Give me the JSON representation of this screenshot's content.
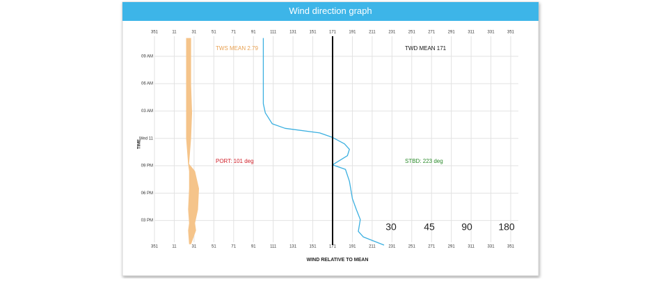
{
  "chart_data": {
    "type": "line",
    "title": "Wind direction graph",
    "x_label": "WIND RELATIVE TO MEAN",
    "y_label": "TIME",
    "xlim": [
      -9,
      351
    ],
    "xticks": [
      {
        "value": -9,
        "label": "351"
      },
      11,
      31,
      51,
      71,
      91,
      111,
      131,
      151,
      171,
      191,
      211,
      231,
      251,
      271,
      291,
      311,
      331,
      351
    ],
    "ylim": [
      -2.7,
      20.2
    ],
    "yticks": [
      {
        "value": 18,
        "label": "09 AM"
      },
      {
        "value": 15,
        "label": "06 AM"
      },
      {
        "value": 12,
        "label": "03 AM"
      },
      {
        "value": 9,
        "label": "Wed 11"
      },
      {
        "value": 6,
        "label": "09 PM"
      },
      {
        "value": 3,
        "label": "06 PM"
      },
      {
        "value": 0,
        "label": "03 PM"
      }
    ],
    "grid": true,
    "mean_direction": 171,
    "series": [
      {
        "color": "#f5c48a",
        "x_base": [
          23,
          23,
          23,
          23,
          23,
          25,
          26,
          26,
          25,
          26,
          25,
          26
        ],
        "x": [
          28,
          28,
          28,
          29,
          28,
          26,
          32,
          36,
          35,
          32,
          33,
          28
        ],
        "y": [
          20.0,
          17.9,
          14.9,
          11.8,
          9.0,
          6.2,
          5.4,
          3.5,
          1.2,
          -0.3,
          -1.1,
          -2.6
        ]
      },
      {
        "color": "#3aafe0",
        "x": [
          101,
          101,
          103,
          110,
          123,
          158,
          171,
          183,
          188,
          186,
          171,
          184,
          188,
          191,
          195,
          199,
          197,
          202,
          223
        ],
        "y": [
          20.0,
          12.8,
          11.8,
          10.6,
          10.1,
          9.6,
          9.1,
          8.4,
          7.8,
          7.1,
          6.1,
          5.6,
          4.3,
          2.4,
          1.2,
          0.1,
          -1.2,
          -1.8,
          -2.7
        ]
      }
    ],
    "annotations": [
      {
        "text": "TWS MEAN 2.79",
        "color": "#e8a050"
      },
      {
        "text": "TWD MEAN 171",
        "color": "#111111"
      },
      {
        "text": "PORT: 101 deg",
        "color": "#d0202a"
      },
      {
        "text": "STBD: 223 deg",
        "color": "#2a8a2a"
      }
    ],
    "buttons": [
      "30",
      "45",
      "90",
      "180"
    ]
  }
}
